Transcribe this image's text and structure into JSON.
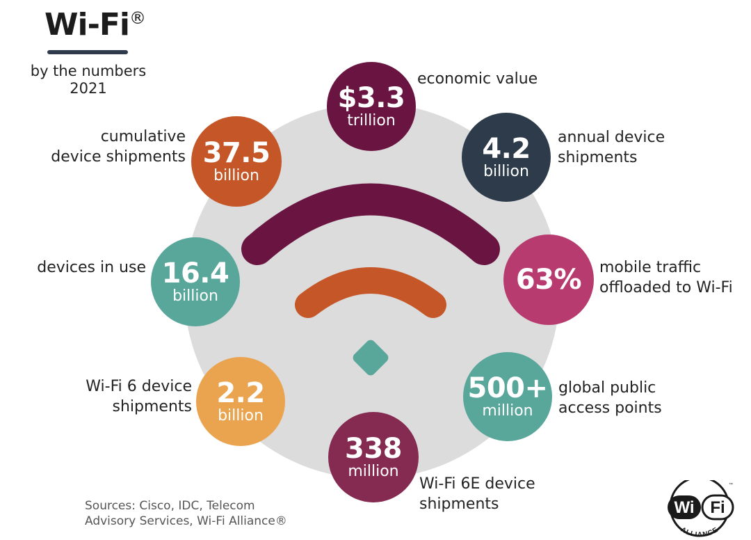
{
  "header": {
    "title": "Wi-Fi",
    "title_mark": "®",
    "subtitle_line1": "by the numbers",
    "subtitle_line2": "2021"
  },
  "stats": [
    {
      "id": "economic",
      "value": "$3.3",
      "unit": "trillion",
      "label_line1": "economic value",
      "label_line2": "",
      "color": "#6a1541"
    },
    {
      "id": "annual",
      "value": "4.2",
      "unit": "billion",
      "label_line1": "annual device",
      "label_line2": "shipments",
      "color": "#2e3b4a"
    },
    {
      "id": "mobile",
      "value": "63%",
      "unit": "",
      "label_line1": "mobile traffic",
      "label_line2": "offloaded to Wi-Fi",
      "color": "#b83b6f"
    },
    {
      "id": "public",
      "value": "500+",
      "unit": "million",
      "label_line1": "global public",
      "label_line2": "access points",
      "color": "#59a79b"
    },
    {
      "id": "wifi6e",
      "value": "338",
      "unit": "million",
      "label_line1": "Wi-Fi 6E device",
      "label_line2": "shipments",
      "color": "#852a50"
    },
    {
      "id": "wifi6",
      "value": "2.2",
      "unit": "billion",
      "label_line1": "Wi-Fi 6 device",
      "label_line2": "shipments",
      "color": "#eaa44f"
    },
    {
      "id": "inuse",
      "value": "16.4",
      "unit": "billion",
      "label_line1": "devices in use",
      "label_line2": "",
      "color": "#59a79b"
    },
    {
      "id": "cumulative",
      "value": "37.5",
      "unit": "billion",
      "label_line1": "cumulative",
      "label_line2": "device shipments",
      "color": "#c55627"
    }
  ],
  "wifi_symbol": {
    "outer_arc_color": "#6a1541",
    "inner_arc_color": "#c55627",
    "dot_color": "#59a79b"
  },
  "footer": {
    "sources_line1": "Sources: Cisco, IDC, Telecom",
    "sources_line2": "Advisory Services, Wi-Fi Alliance®"
  },
  "logo": {
    "left_text": "Wi",
    "right_text": "Fi",
    "arc_text": "ALLIANCE",
    "tm": "™"
  }
}
